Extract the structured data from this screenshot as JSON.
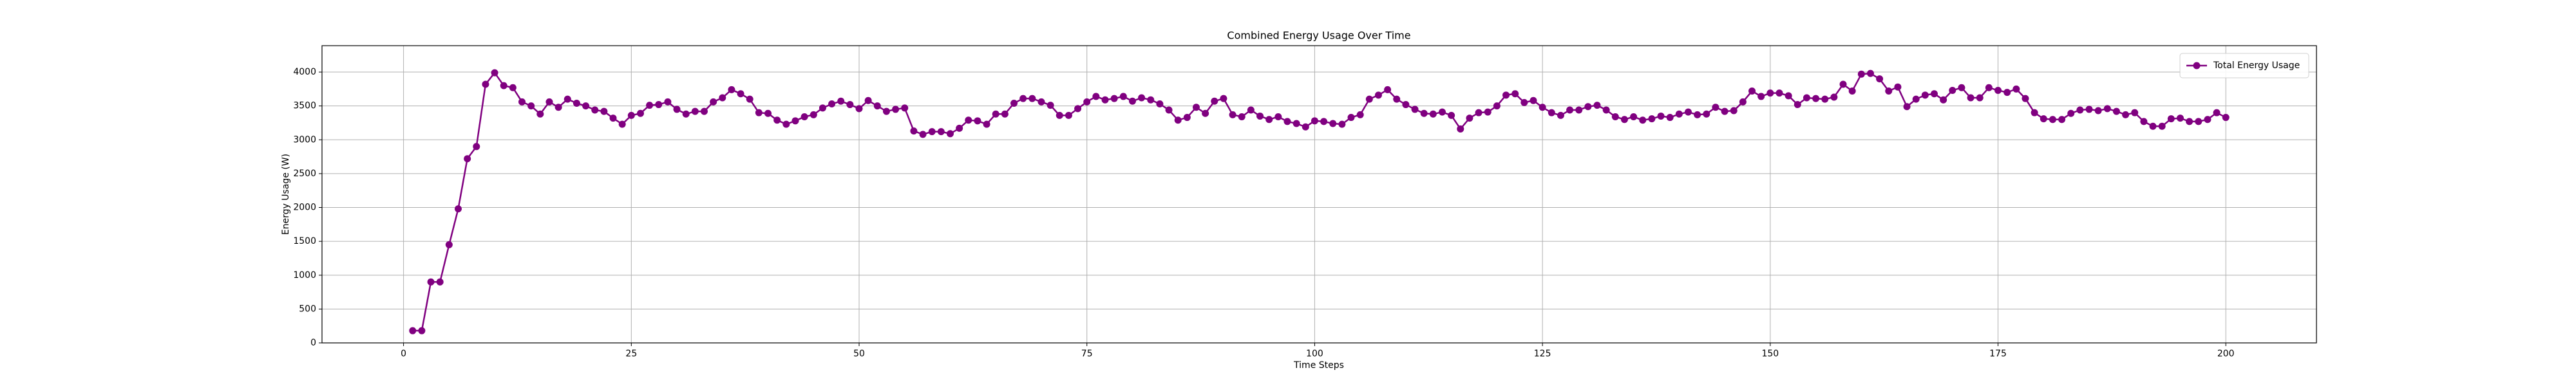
{
  "chart_data": {
    "type": "line",
    "title": "Combined Energy Usage Over Time",
    "xlabel": "Time Steps",
    "ylabel": "Energy Usage (W)",
    "x": [
      1,
      2,
      3,
      4,
      5,
      6,
      7,
      8,
      9,
      10,
      11,
      12,
      13,
      14,
      15,
      16,
      17,
      18,
      19,
      20,
      21,
      22,
      23,
      24,
      25,
      26,
      27,
      28,
      29,
      30,
      31,
      32,
      33,
      34,
      35,
      36,
      37,
      38,
      39,
      40,
      41,
      42,
      43,
      44,
      45,
      46,
      47,
      48,
      49,
      50,
      51,
      52,
      53,
      54,
      55,
      56,
      57,
      58,
      59,
      60,
      61,
      62,
      63,
      64,
      65,
      66,
      67,
      68,
      69,
      70,
      71,
      72,
      73,
      74,
      75,
      76,
      77,
      78,
      79,
      80,
      81,
      82,
      83,
      84,
      85,
      86,
      87,
      88,
      89,
      90,
      91,
      92,
      93,
      94,
      95,
      96,
      97,
      98,
      99,
      100,
      101,
      102,
      103,
      104,
      105,
      106,
      107,
      108,
      109,
      110,
      111,
      112,
      113,
      114,
      115,
      116,
      117,
      118,
      119,
      120,
      121,
      122,
      123,
      124,
      125,
      126,
      127,
      128,
      129,
      130,
      131,
      132,
      133,
      134,
      135,
      136,
      137,
      138,
      139,
      140,
      141,
      142,
      143,
      144,
      145,
      146,
      147,
      148,
      149,
      150,
      151,
      152,
      153,
      154,
      155,
      156,
      157,
      158,
      159,
      160,
      161,
      162,
      163,
      164,
      165,
      166,
      167,
      168,
      169,
      170,
      171,
      172,
      173,
      174,
      175,
      176,
      177,
      178,
      179,
      180,
      181,
      182,
      183,
      184,
      185,
      186,
      187,
      188,
      189,
      190,
      191,
      192,
      193,
      194,
      195,
      196,
      197,
      198,
      199,
      200
    ],
    "series": [
      {
        "name": "Total Energy Usage",
        "color": "#800080",
        "values": [
          180,
          180,
          900,
          900,
          1450,
          1980,
          2720,
          2900,
          3820,
          3990,
          3800,
          3770,
          3560,
          3500,
          3380,
          3560,
          3480,
          3600,
          3540,
          3500,
          3440,
          3420,
          3320,
          3230,
          3360,
          3390,
          3510,
          3520,
          3560,
          3450,
          3380,
          3420,
          3420,
          3560,
          3620,
          3740,
          3680,
          3600,
          3400,
          3390,
          3290,
          3230,
          3280,
          3340,
          3370,
          3470,
          3530,
          3570,
          3520,
          3460,
          3580,
          3500,
          3420,
          3450,
          3470,
          3130,
          3080,
          3120,
          3120,
          3090,
          3170,
          3290,
          3280,
          3230,
          3380,
          3380,
          3540,
          3610,
          3610,
          3560,
          3510,
          3360,
          3360,
          3460,
          3560,
          3640,
          3590,
          3610,
          3640,
          3570,
          3620,
          3590,
          3530,
          3440,
          3290,
          3330,
          3480,
          3390,
          3570,
          3610,
          3370,
          3340,
          3440,
          3350,
          3300,
          3340,
          3270,
          3240,
          3190,
          3280,
          3270,
          3240,
          3230,
          3330,
          3370,
          3600,
          3660,
          3740,
          3600,
          3520,
          3450,
          3390,
          3380,
          3410,
          3360,
          3160,
          3320,
          3400,
          3410,
          3500,
          3660,
          3680,
          3550,
          3580,
          3480,
          3400,
          3360,
          3440,
          3440,
          3490,
          3510,
          3440,
          3340,
          3300,
          3340,
          3290,
          3310,
          3350,
          3330,
          3380,
          3410,
          3370,
          3380,
          3480,
          3420,
          3430,
          3560,
          3720,
          3640,
          3690,
          3690,
          3650,
          3520,
          3620,
          3610,
          3600,
          3630,
          3820,
          3720,
          3970,
          3980,
          3900,
          3720,
          3780,
          3490,
          3600,
          3660,
          3680,
          3590,
          3730,
          3770,
          3620,
          3620,
          3770,
          3730,
          3700,
          3750,
          3610,
          3400,
          3310,
          3300,
          3300,
          3390,
          3440,
          3450,
          3430,
          3460,
          3420,
          3370,
          3400,
          3270,
          3200,
          3200,
          3310,
          3320,
          3270,
          3270,
          3300,
          3400,
          3330
        ]
      }
    ],
    "xlim": [
      -8.95,
      209.95
    ],
    "ylim": [
      0,
      4390
    ],
    "xticks": [
      0,
      25,
      50,
      75,
      100,
      125,
      150,
      175,
      200
    ],
    "yticks": [
      0,
      500,
      1000,
      1500,
      2000,
      2500,
      3000,
      3500,
      4000
    ],
    "grid": true,
    "legend": "upper right"
  }
}
